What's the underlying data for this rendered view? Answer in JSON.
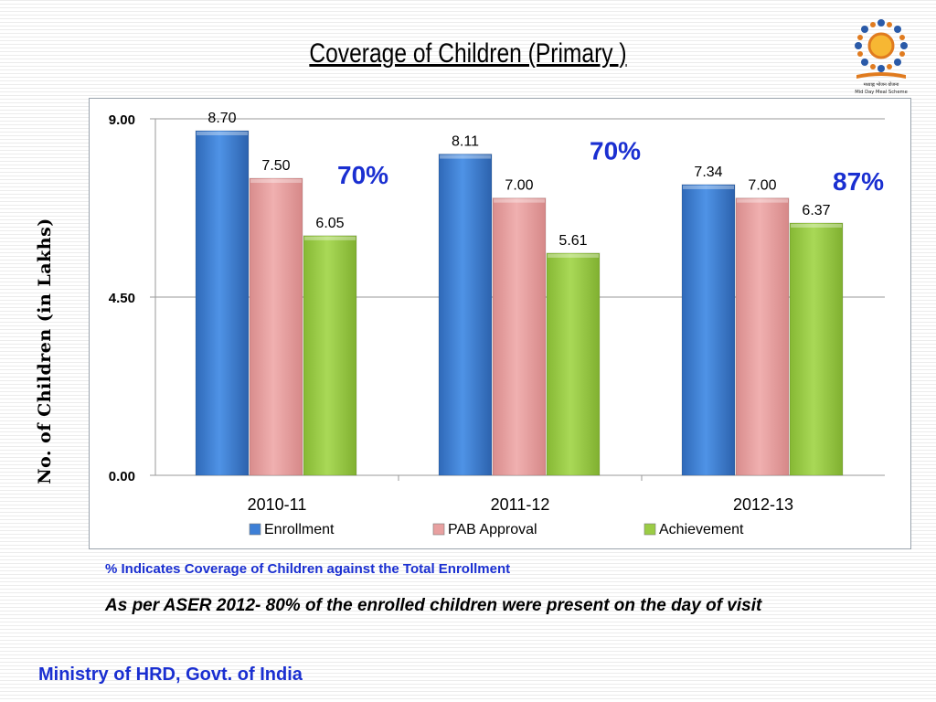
{
  "chart_data": {
    "type": "bar",
    "title": "Coverage of Children  (Primary )",
    "ylabel": "No. of Children (in Lakhs)",
    "xlabel": "",
    "categories": [
      "2010-11",
      "2011-12",
      "2012-13"
    ],
    "series": [
      {
        "name": "Enrollment",
        "values": [
          8.7,
          8.11,
          7.34
        ],
        "labels": [
          "8.70",
          "8.11",
          "7.34"
        ],
        "color": "#3d7fd6"
      },
      {
        "name": "PAB Approval",
        "values": [
          7.5,
          7.0,
          7.0
        ],
        "labels": [
          "7.50",
          "7.00",
          "7.00"
        ],
        "color": "#e8a0a0"
      },
      {
        "name": "Achievement",
        "values": [
          6.05,
          5.61,
          6.37
        ],
        "labels": [
          "6.05",
          "5.61",
          "6.37"
        ],
        "color": "#9bcc45"
      }
    ],
    "coverage_labels": [
      "70%",
      "70%",
      "87%"
    ],
    "coverage_color": "#1a2fd1",
    "yticks": [
      "0.00",
      "4.50",
      "9.00"
    ],
    "ytick_values": [
      0,
      4.5,
      9
    ],
    "ylim": [
      0,
      9
    ],
    "grid": true,
    "legend": "bottom"
  },
  "logo_text": "मध्याह्न भोजन योजना Mid Day Meal Scheme",
  "notes": {
    "coverage_note": "% Indicates Coverage of Children against the Total Enrollment",
    "aser_note": "As per ASER 2012- 80% of the enrolled children were present on the day of visit"
  },
  "footer": "Ministry of HRD, Govt. of India"
}
